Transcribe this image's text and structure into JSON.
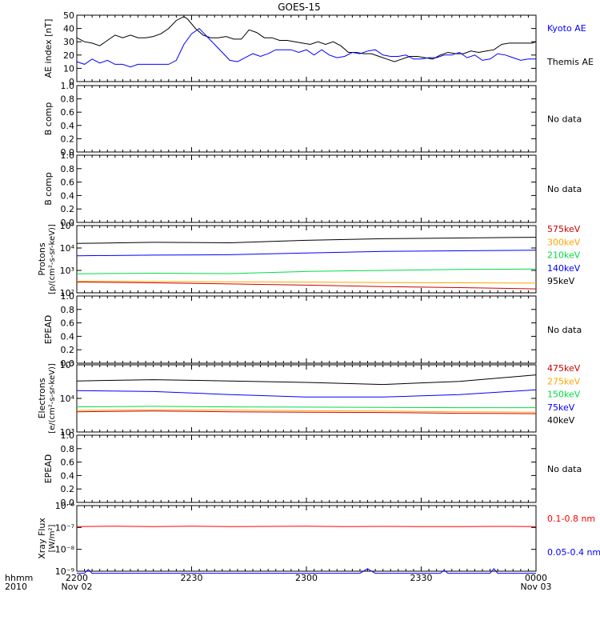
{
  "title": "GOES-15",
  "time_axis": {
    "row1_label": "hhmm",
    "row2_label": "2010",
    "ticks": [
      {
        "label": "2200",
        "sub": "Nov 02",
        "minutes": 0
      },
      {
        "label": "2230",
        "sub": "",
        "minutes": 30
      },
      {
        "label": "2300",
        "sub": "",
        "minutes": 60
      },
      {
        "label": "2330",
        "sub": "",
        "minutes": 90
      },
      {
        "label": "0000",
        "sub": "Nov 03",
        "minutes": 120
      }
    ],
    "range_minutes": [
      0,
      120
    ]
  },
  "colors": {
    "black": "#000000",
    "blue": "#0000ff",
    "red": "#cc0000",
    "orange": "#ffa500",
    "green": "#00dd44",
    "xray_red": "#ff0000"
  },
  "chart_data": [
    {
      "type": "line",
      "id": "ae",
      "ylabel": "AE index [nT]",
      "ylim": [
        0,
        50
      ],
      "scale": "linear",
      "ticks": [
        "50",
        "40",
        "30",
        "20",
        "10",
        "0"
      ],
      "tick_values": [
        50,
        40,
        30,
        20,
        10,
        0
      ],
      "legend": [
        {
          "name": "Kyoto AE",
          "color": "#0000ff"
        },
        {
          "name": "Themis AE",
          "color": "#000000"
        }
      ],
      "series": [
        {
          "name": "Themis AE",
          "color": "#000000",
          "x": [
            0,
            2,
            4,
            6,
            8,
            10,
            12,
            14,
            16,
            18,
            20,
            22,
            24,
            26,
            28,
            29,
            31,
            33,
            35,
            37,
            39,
            41,
            43,
            45,
            47,
            49,
            51,
            53,
            55,
            57,
            59,
            61,
            63,
            65,
            67,
            69,
            71,
            73,
            75,
            77,
            79,
            81,
            83,
            85,
            87,
            89,
            91,
            93,
            95,
            97,
            99,
            101,
            103,
            105,
            107,
            109,
            111,
            113,
            115,
            117,
            119,
            120
          ],
          "y": [
            33,
            30,
            29,
            27,
            31,
            35,
            33,
            35,
            33,
            33,
            34,
            36,
            40,
            46,
            49,
            47,
            40,
            35,
            33,
            33,
            34,
            32,
            32,
            39,
            37,
            33,
            33,
            31,
            31,
            30,
            29,
            28,
            30,
            28,
            30,
            27,
            22,
            22,
            21,
            21,
            19,
            17,
            15,
            17,
            19,
            19,
            18,
            17,
            20,
            22,
            21,
            21,
            23,
            22,
            23,
            24,
            28,
            29,
            29,
            29,
            29,
            30
          ]
        },
        {
          "name": "Kyoto AE",
          "color": "#0000ff",
          "x": [
            0,
            2,
            4,
            6,
            8,
            10,
            12,
            14,
            16,
            18,
            20,
            22,
            24,
            26,
            28,
            30,
            32,
            34,
            36,
            38,
            40,
            42,
            44,
            46,
            48,
            50,
            52,
            54,
            56,
            58,
            60,
            62,
            64,
            66,
            68,
            70,
            72,
            74,
            76,
            78,
            80,
            82,
            84,
            86,
            88,
            90,
            92,
            94,
            96,
            98,
            100,
            102,
            104,
            106,
            108,
            110,
            112,
            114,
            116,
            118,
            120
          ],
          "y": [
            15,
            13,
            17,
            14,
            16,
            13,
            13,
            11,
            13,
            13,
            13,
            13,
            13,
            16,
            28,
            36,
            40,
            34,
            28,
            22,
            16,
            15,
            18,
            21,
            19,
            21,
            24,
            24,
            24,
            22,
            24,
            20,
            24,
            20,
            18,
            19,
            22,
            21,
            23,
            24,
            20,
            19,
            19,
            20,
            17,
            17,
            18,
            18,
            20,
            20,
            22,
            18,
            20,
            16,
            17,
            21,
            20,
            18,
            16,
            17,
            17
          ]
        }
      ]
    },
    {
      "type": "line",
      "id": "b1",
      "ylabel": "B comp",
      "ylim": [
        0,
        1
      ],
      "scale": "linear",
      "ticks": [
        "1.0",
        "0.8",
        "0.6",
        "0.4",
        "0.2",
        "0.0"
      ],
      "tick_values": [
        1,
        0.8,
        0.6,
        0.4,
        0.2,
        0
      ],
      "note": "No data",
      "series": []
    },
    {
      "type": "line",
      "id": "b2",
      "ylabel": "B comp",
      "ylim": [
        0,
        1
      ],
      "scale": "linear",
      "ticks": [
        "1.0",
        "0.8",
        "0.6",
        "0.4",
        "0.2",
        "0.0"
      ],
      "tick_values": [
        1,
        0.8,
        0.6,
        0.4,
        0.2,
        0
      ],
      "note": "No data",
      "series": []
    },
    {
      "type": "line",
      "id": "protons",
      "ylabel_line1": "Protons",
      "ylabel_line2": "[p/(cm²-s-sr-keV)]",
      "ylim": [
        100,
        100000
      ],
      "scale": "log",
      "ticks": [
        "10⁵",
        "10⁴",
        "10³",
        "10²"
      ],
      "tick_values": [
        100000,
        10000,
        1000,
        100
      ],
      "legend": [
        {
          "name": "575keV",
          "color": "#cc0000"
        },
        {
          "name": "300keV",
          "color": "#ffa500"
        },
        {
          "name": "210keV",
          "color": "#00dd44"
        },
        {
          "name": "140keV",
          "color": "#0000ff"
        },
        {
          "name": "95keV",
          "color": "#000000"
        }
      ],
      "series": [
        {
          "name": "95keV",
          "color": "#000000",
          "x": [
            0,
            20,
            40,
            60,
            80,
            100,
            120
          ],
          "y": [
            16000,
            18000,
            17000,
            22000,
            26000,
            28000,
            30000
          ]
        },
        {
          "name": "140keV",
          "color": "#0000ff",
          "x": [
            0,
            20,
            40,
            60,
            80,
            100,
            120
          ],
          "y": [
            4500,
            4800,
            5000,
            6000,
            7000,
            7500,
            8000
          ]
        },
        {
          "name": "210keV",
          "color": "#00dd44",
          "x": [
            0,
            20,
            40,
            60,
            80,
            100,
            120
          ],
          "y": [
            700,
            750,
            720,
            900,
            1000,
            1100,
            1150
          ]
        },
        {
          "name": "300keV",
          "color": "#ffa500",
          "x": [
            0,
            20,
            40,
            60,
            80,
            100,
            120
          ],
          "y": [
            330,
            320,
            310,
            300,
            290,
            280,
            270
          ]
        },
        {
          "name": "575keV",
          "color": "#cc0000",
          "x": [
            0,
            20,
            40,
            60,
            80,
            100,
            120
          ],
          "y": [
            300,
            280,
            250,
            220,
            190,
            170,
            150
          ]
        }
      ]
    },
    {
      "type": "line",
      "id": "epead1",
      "ylabel": "EPEAD",
      "ylim": [
        0,
        1
      ],
      "scale": "linear",
      "ticks": [
        "1.0",
        "0.8",
        "0.6",
        "0.4",
        "0.2",
        "0.0"
      ],
      "tick_values": [
        1,
        0.8,
        0.6,
        0.4,
        0.2,
        0
      ],
      "note": "No data",
      "series": []
    },
    {
      "type": "line",
      "id": "electrons",
      "ylabel_line1": "Electrons",
      "ylabel_line2": "[e/(cm²-s-sr-keV)]",
      "ylim": [
        1000,
        100000
      ],
      "scale": "log",
      "ticks": [
        "10⁵",
        "10⁴",
        "10³"
      ],
      "tick_values": [
        100000,
        10000,
        1000
      ],
      "legend": [
        {
          "name": "475keV",
          "color": "#cc0000"
        },
        {
          "name": "275keV",
          "color": "#ffa500"
        },
        {
          "name": "150keV",
          "color": "#00dd44"
        },
        {
          "name": "75keV",
          "color": "#0000ff"
        },
        {
          "name": "40keV",
          "color": "#000000"
        }
      ],
      "series": [
        {
          "name": "40keV",
          "color": "#000000",
          "x": [
            0,
            20,
            40,
            60,
            80,
            100,
            120
          ],
          "y": [
            33000,
            36000,
            33000,
            30000,
            26000,
            32000,
            50000
          ]
        },
        {
          "name": "75keV",
          "color": "#0000ff",
          "x": [
            0,
            20,
            40,
            60,
            80,
            100,
            120
          ],
          "y": [
            17000,
            16000,
            13000,
            11000,
            11000,
            13000,
            18000
          ]
        },
        {
          "name": "150keV",
          "color": "#00dd44",
          "x": [
            0,
            20,
            40,
            60,
            80,
            100,
            120
          ],
          "y": [
            5600,
            5800,
            5600,
            5500,
            5400,
            5300,
            5300
          ]
        },
        {
          "name": "275keV",
          "color": "#ffa500",
          "x": [
            0,
            20,
            40,
            60,
            80,
            100,
            120
          ],
          "y": [
            4400,
            4600,
            4500,
            4300,
            4200,
            4000,
            3900
          ]
        },
        {
          "name": "475keV",
          "color": "#cc0000",
          "x": [
            0,
            20,
            40,
            60,
            80,
            100,
            120
          ],
          "y": [
            4000,
            4200,
            4000,
            3900,
            3800,
            3600,
            3500
          ]
        }
      ]
    },
    {
      "type": "line",
      "id": "epead2",
      "ylabel": "EPEAD",
      "ylim": [
        0,
        1
      ],
      "scale": "linear",
      "ticks": [
        "1.0",
        "0.8",
        "0.6",
        "0.4",
        "0.2",
        "0.0"
      ],
      "tick_values": [
        1,
        0.8,
        0.6,
        0.4,
        0.2,
        0
      ],
      "note": "No data",
      "series": []
    },
    {
      "type": "line",
      "id": "xray",
      "ylabel_line1": "Xray Flux",
      "ylabel_line2": "[W/m²]",
      "ylim": [
        1e-09,
        1e-06
      ],
      "scale": "log",
      "ticks": [
        "10⁻⁶",
        "10⁻⁷",
        "10⁻⁸",
        "10⁻⁹"
      ],
      "tick_values": [
        1e-06,
        1e-07,
        1e-08,
        1e-09
      ],
      "legend": [
        {
          "name": "0.1-0.8 nm",
          "color": "#ff0000"
        },
        {
          "name": "0.05-0.4 nm",
          "color": "#0000ff"
        }
      ],
      "series": [
        {
          "name": "0.1-0.8 nm",
          "color": "#ff0000",
          "x": [
            0,
            10,
            20,
            30,
            40,
            50,
            60,
            70,
            80,
            90,
            100,
            110,
            120
          ],
          "y": [
            1.1e-07,
            1.15e-07,
            1.1e-07,
            1.15e-07,
            1.1e-07,
            1.12e-07,
            1.15e-07,
            1.1e-07,
            1.12e-07,
            1.1e-07,
            1.1e-07,
            1.12e-07,
            1.1e-07
          ]
        },
        {
          "name": "0.05-0.4 nm",
          "color": "#0000ff",
          "x": [
            0,
            2,
            3,
            4,
            6,
            30,
            74,
            76,
            77,
            78,
            80,
            95,
            96,
            97,
            108,
            109,
            110,
            120
          ],
          "y": [
            8e-10,
            8e-10,
            1.2e-09,
            8e-10,
            8e-10,
            8e-10,
            8e-10,
            1.3e-09,
            1e-09,
            8e-10,
            8e-10,
            8e-10,
            1.1e-09,
            8e-10,
            8e-10,
            1.3e-09,
            8e-10,
            8e-10
          ]
        }
      ]
    }
  ]
}
